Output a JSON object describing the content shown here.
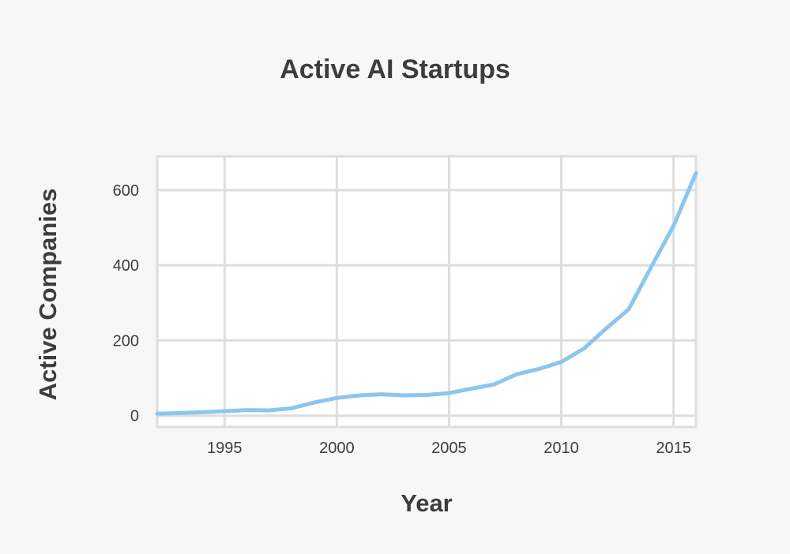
{
  "chart_data": {
    "type": "line",
    "title": "Active AI Startups",
    "xlabel": "Year",
    "ylabel": "Active Companies",
    "xlim": [
      1992,
      2016
    ],
    "ylim": [
      -30,
      690
    ],
    "x_ticks": [
      1995,
      2000,
      2005,
      2010,
      2015
    ],
    "y_ticks": [
      0,
      200,
      400,
      600
    ],
    "grid": true,
    "line_color": "#8cc5ee",
    "grid_color": "#dedede",
    "series": [
      {
        "x": [
          1992,
          1993,
          1994,
          1995,
          1996,
          1997,
          1998,
          1999,
          2000,
          2001,
          2002,
          2003,
          2004,
          2005,
          2006,
          2007,
          2008,
          2009,
          2010,
          2011,
          2012,
          2013,
          2014,
          2015,
          2016
        ],
        "values": [
          5,
          7,
          9,
          12,
          15,
          14,
          20,
          35,
          47,
          54,
          57,
          54,
          55,
          60,
          72,
          83,
          110,
          124,
          143,
          178,
          232,
          283,
          395,
          505,
          645
        ]
      }
    ]
  }
}
